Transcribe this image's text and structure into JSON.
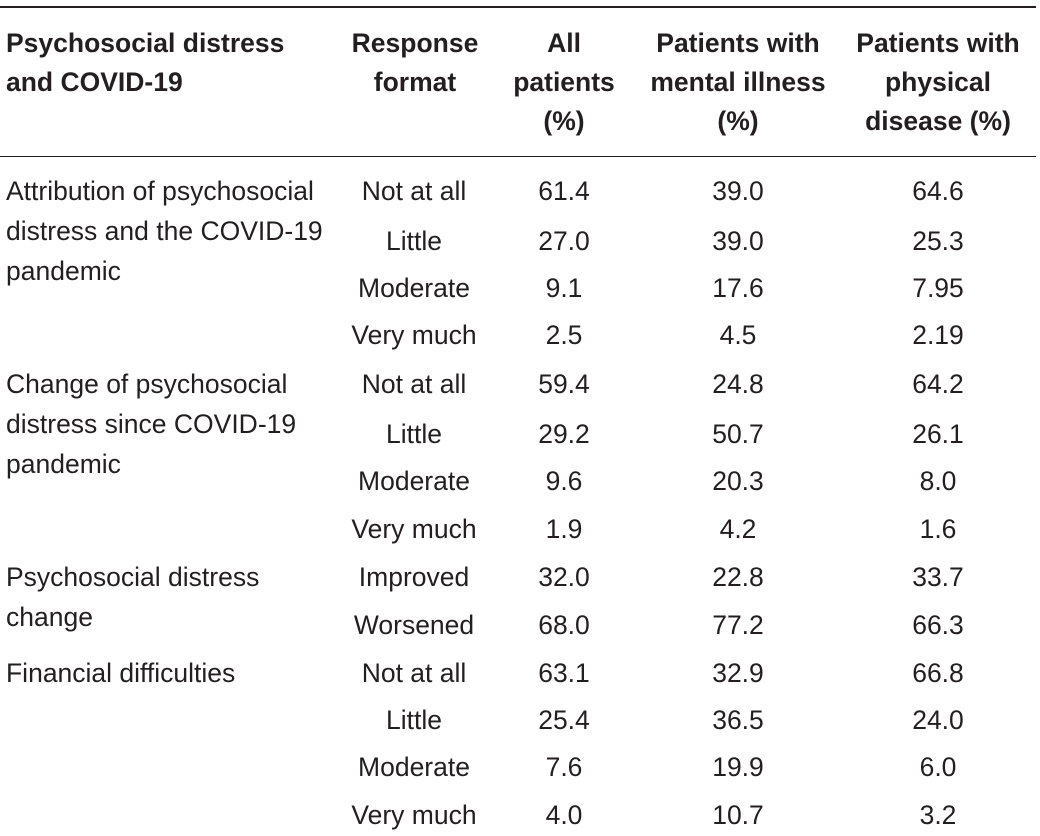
{
  "table": {
    "headers": {
      "category": "Psychosocial distress and COVID-19",
      "response": "Response format",
      "all": "All patients (%)",
      "mental": "Patients with mental illness (%)",
      "physical": "Patients with physical disease (%)"
    },
    "groups": [
      {
        "label": "Attribution of psychosocial distress and the COVID-19 pandemic",
        "rows": [
          {
            "response": "Not at all",
            "all": "61.4",
            "mental": "39.0",
            "physical": "64.6"
          },
          {
            "response": "Little",
            "all": "27.0",
            "mental": "39.0",
            "physical": "25.3"
          },
          {
            "response": "Moderate",
            "all": "9.1",
            "mental": "17.6",
            "physical": "7.95"
          },
          {
            "response": "Very much",
            "all": "2.5",
            "mental": "4.5",
            "physical": "2.19"
          }
        ]
      },
      {
        "label": "Change of psychosocial distress since COVID-19 pandemic",
        "rows": [
          {
            "response": "Not at all",
            "all": "59.4",
            "mental": "24.8",
            "physical": "64.2"
          },
          {
            "response": "Little",
            "all": "29.2",
            "mental": "50.7",
            "physical": "26.1"
          },
          {
            "response": "Moderate",
            "all": "9.6",
            "mental": "20.3",
            "physical": "8.0"
          },
          {
            "response": "Very much",
            "all": "1.9",
            "mental": "4.2",
            "physical": "1.6"
          }
        ]
      },
      {
        "label": "Psychosocial distress change",
        "rows": [
          {
            "response": "Improved",
            "all": "32.0",
            "mental": "22.8",
            "physical": "33.7"
          },
          {
            "response": "Worsened",
            "all": "68.0",
            "mental": "77.2",
            "physical": "66.3"
          }
        ]
      },
      {
        "label": "Financial difficulties",
        "rows": [
          {
            "response": "Not at all",
            "all": "63.1",
            "mental": "32.9",
            "physical": "66.8"
          },
          {
            "response": "Little",
            "all": "25.4",
            "mental": "36.5",
            "physical": "24.0"
          },
          {
            "response": "Moderate",
            "all": "7.6",
            "mental": "19.9",
            "physical": "6.0"
          },
          {
            "response": "Very much",
            "all": "4.0",
            "mental": "10.7",
            "physical": "3.2"
          }
        ]
      }
    ]
  }
}
